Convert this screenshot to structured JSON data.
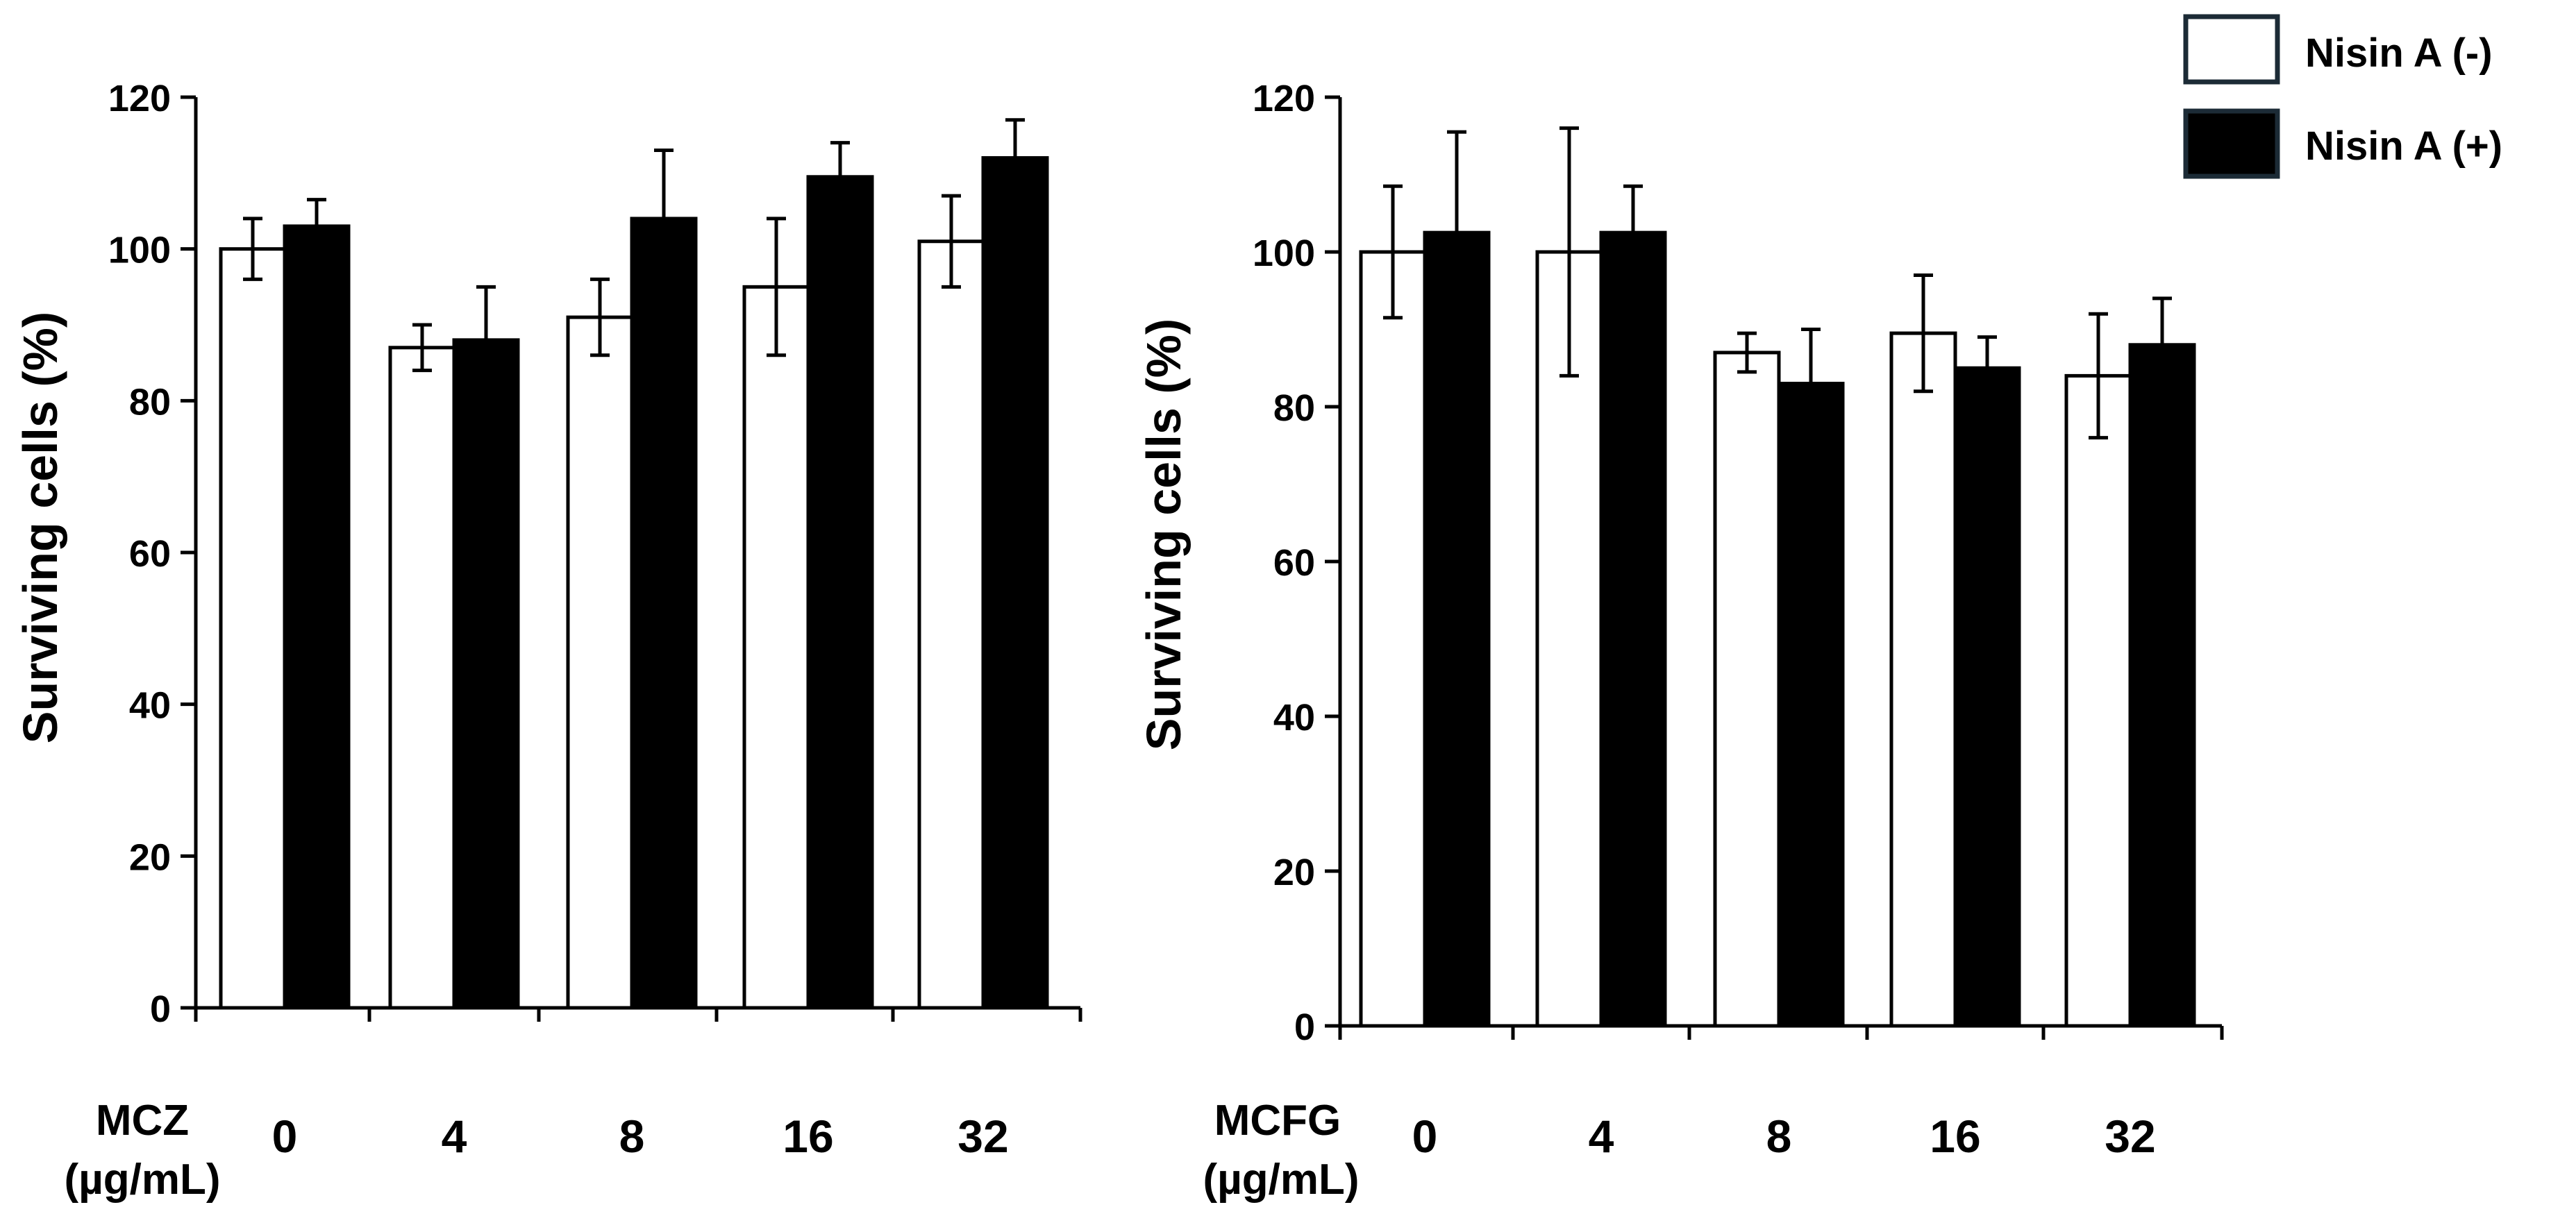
{
  "legend": {
    "items": [
      {
        "label": "Nisin A (-)",
        "fill": "#ffffff",
        "stroke": "#1c2b36"
      },
      {
        "label": "Nisin A (+)",
        "fill": "#000000",
        "stroke": "#1c2b36"
      }
    ],
    "placement": "top-right"
  },
  "colors": {
    "bar_without_nisin": "#ffffff",
    "bar_with_nisin": "#000000",
    "axis": "#000000"
  },
  "chart_data": [
    {
      "type": "bar",
      "title": "",
      "ylabel": "Surviving cells (%)",
      "xlabel_line1": "MCZ",
      "xlabel_line2": "(µg/mL)",
      "ylim": [
        0,
        120
      ],
      "yticks": [
        0,
        20,
        40,
        60,
        80,
        100,
        120
      ],
      "categories": [
        "0",
        "4",
        "8",
        "16",
        "32"
      ],
      "series": [
        {
          "name": "Nisin A (-)",
          "values": [
            100,
            87,
            91,
            95,
            101
          ],
          "errors": [
            4,
            3,
            5,
            9,
            6
          ]
        },
        {
          "name": "Nisin A (+)",
          "values": [
            103,
            88,
            104,
            109.5,
            112
          ],
          "errors": [
            3.5,
            7,
            9,
            4.5,
            5
          ]
        }
      ]
    },
    {
      "type": "bar",
      "title": "",
      "ylabel": "Surviving cells (%)",
      "xlabel_line1": "MCFG",
      "xlabel_line2": "(µg/mL)",
      "ylim": [
        0,
        120
      ],
      "yticks": [
        0,
        20,
        40,
        60,
        80,
        100,
        120
      ],
      "categories": [
        "0",
        "4",
        "8",
        "16",
        "32"
      ],
      "series": [
        {
          "name": "Nisin A (-)",
          "values": [
            100,
            100,
            87,
            89.5,
            84
          ],
          "errors": [
            8.5,
            16,
            2.5,
            7.5,
            8
          ]
        },
        {
          "name": "Nisin A (+)",
          "values": [
            102.5,
            102.5,
            83,
            85,
            88
          ],
          "errors": [
            13,
            6,
            7,
            4,
            6
          ]
        }
      ]
    }
  ]
}
